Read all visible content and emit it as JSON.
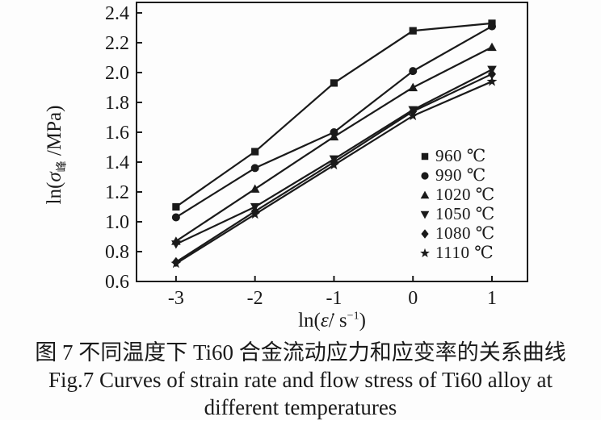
{
  "figure": {
    "caption_cn": "图 7  不同温度下 Ti60 合金流动应力和应变率的关系曲线",
    "caption_en_1": "Fig.7  Curves of strain rate and flow stress of Ti60 alloy at",
    "caption_en_2": "different temperatures"
  },
  "axes": {
    "y_title": {
      "prefix": "ln(",
      "symbol": "σ",
      "subscript": "峰",
      "suffix": " /MPa)"
    },
    "x_title": {
      "prefix": "ln(",
      "symbol": "ε̇",
      "mid": "/ s",
      "superscript": "−1",
      "suffix": ")"
    }
  },
  "chart_data": {
    "type": "line",
    "title": "",
    "xlabel": "ln(ε̇ / s⁻¹)",
    "ylabel": "ln(σ峰 / MPa)",
    "x": [
      -3,
      -2,
      -1,
      0,
      1
    ],
    "x_tick_labels": [
      "-3",
      "-2",
      "-1",
      "0",
      "1"
    ],
    "y_ticks": [
      0.6,
      0.8,
      1.0,
      1.2,
      1.4,
      1.6,
      1.8,
      2.0,
      2.2,
      2.4
    ],
    "xlim": [
      -3.5,
      1.45
    ],
    "ylim": [
      0.6,
      2.47
    ],
    "grid": false,
    "legend_position": "inside lower-right",
    "line_color": "#1a1a1a",
    "series": [
      {
        "name": "960 ℃",
        "marker": "square",
        "color": "#1a1a1a",
        "values": [
          1.1,
          1.47,
          1.93,
          2.28,
          2.33
        ]
      },
      {
        "name": "990 ℃",
        "marker": "circle",
        "color": "#1a1a1a",
        "values": [
          1.03,
          1.36,
          1.6,
          2.01,
          2.31
        ]
      },
      {
        "name": "1020 ℃",
        "marker": "triangle-up",
        "color": "#1a1a1a",
        "values": [
          0.87,
          1.22,
          1.57,
          1.9,
          2.17
        ]
      },
      {
        "name": "1050 ℃",
        "marker": "triangle-down",
        "color": "#1a1a1a",
        "values": [
          0.85,
          1.1,
          1.42,
          1.75,
          2.02
        ]
      },
      {
        "name": "1080 ℃",
        "marker": "diamond",
        "color": "#1a1a1a",
        "values": [
          0.73,
          1.07,
          1.4,
          1.74,
          1.99
        ]
      },
      {
        "name": "1110 ℃",
        "marker": "star",
        "color": "#1a1a1a",
        "values": [
          0.72,
          1.05,
          1.38,
          1.71,
          1.94
        ]
      }
    ]
  }
}
